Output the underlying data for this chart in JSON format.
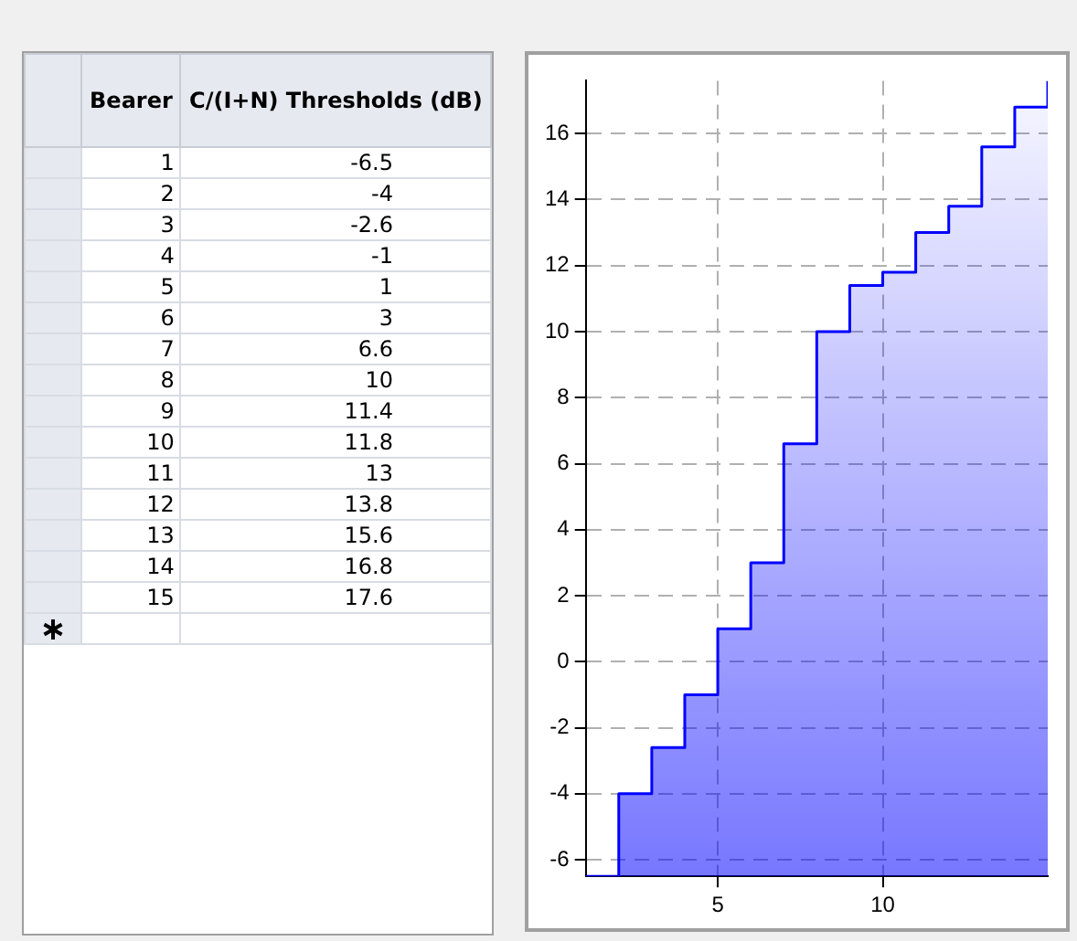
{
  "chart_data": [
    {
      "type": "heatmap",
      "ylabel": "Bearer",
      "categories": [
        "C/(I+N) Thresholds (dB)"
      ],
      "y_categories": [
        "1",
        "2",
        "3",
        "4",
        "5",
        "6",
        "7",
        "8",
        "9",
        "10",
        "11",
        "12",
        "13",
        "14",
        "15"
      ],
      "cells": [
        [
          -6.5
        ],
        [
          -4
        ],
        [
          -2.6
        ],
        [
          -1
        ],
        [
          1
        ],
        [
          3
        ],
        [
          6.6
        ],
        [
          10
        ],
        [
          11.4
        ],
        [
          11.8
        ],
        [
          13
        ],
        [
          13.8
        ],
        [
          15.6
        ],
        [
          16.8
        ],
        [
          17.6
        ]
      ],
      "data_labels": true
    },
    {
      "type": "step",
      "x": [
        1,
        2,
        3,
        4,
        5,
        6,
        7,
        8,
        9,
        10,
        11,
        12,
        13,
        14,
        15
      ],
      "values": [
        -6.5,
        -4,
        -2.6,
        -1,
        1,
        3,
        6.6,
        10,
        11.4,
        11.8,
        13,
        13.8,
        15.6,
        16.8,
        17.6
      ],
      "color": "#0000ff",
      "xlim": [
        1,
        15
      ],
      "xticks": [
        5,
        10
      ],
      "ylim": [
        -6.5,
        17.6
      ],
      "yticks": [
        -6,
        -4,
        -2,
        0,
        2,
        4,
        6,
        8,
        10,
        12,
        14,
        16
      ],
      "grid": true,
      "legend": false
    }
  ]
}
